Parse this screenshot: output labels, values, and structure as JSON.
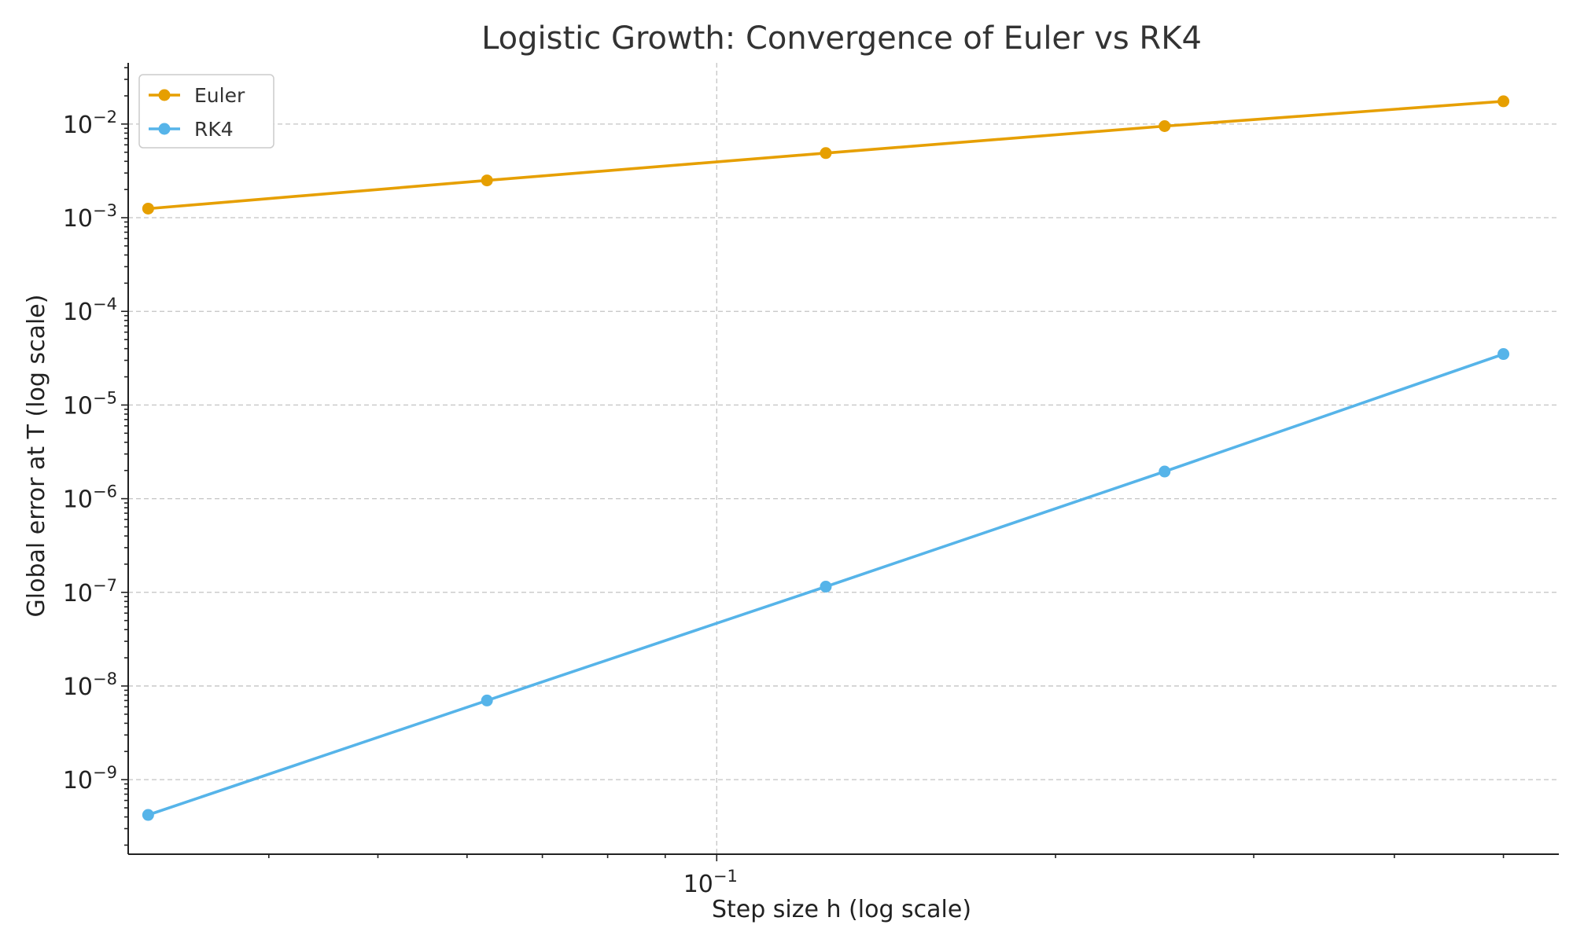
{
  "chart_data": {
    "type": "line",
    "title": "Logistic Growth: Convergence of Euler vs RK4",
    "xlabel": "Step size h (log scale)",
    "ylabel": "Global error at T (log scale)",
    "x_scale": "log",
    "y_scale": "log",
    "xlim": [
      0.03,
      0.56
    ],
    "ylim": [
      1.6e-10,
      0.045
    ],
    "x_ticks": [
      {
        "value": 0.1,
        "base": "10",
        "exp": "−1"
      }
    ],
    "y_ticks": [
      {
        "value": 1e-09,
        "base": "10",
        "exp": "−9"
      },
      {
        "value": 1e-08,
        "base": "10",
        "exp": "−8"
      },
      {
        "value": 1e-07,
        "base": "10",
        "exp": "−7"
      },
      {
        "value": 1e-06,
        "base": "10",
        "exp": "−6"
      },
      {
        "value": 1e-05,
        "base": "10",
        "exp": "−5"
      },
      {
        "value": 0.0001,
        "base": "10",
        "exp": "−4"
      },
      {
        "value": 0.001,
        "base": "10",
        "exp": "−3"
      },
      {
        "value": 0.01,
        "base": "10",
        "exp": "−2"
      }
    ],
    "grid": true,
    "legend_position": "top-left",
    "x": [
      0.03125,
      0.0625,
      0.125,
      0.25,
      0.5
    ],
    "series": [
      {
        "name": "Euler",
        "color": "#E69F00",
        "marker": "circle",
        "values": [
          0.00125,
          0.0025,
          0.0049,
          0.0095,
          0.0175
        ]
      },
      {
        "name": "RK4",
        "color": "#56B4E9",
        "marker": "circle",
        "values": [
          4.2e-10,
          7e-09,
          1.15e-07,
          1.95e-06,
          3.5e-05
        ]
      }
    ]
  }
}
